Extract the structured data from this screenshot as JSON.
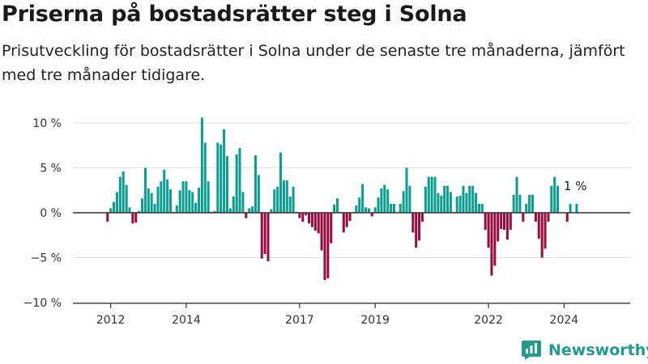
{
  "header": {
    "title": "Priserna på bostadsrätter steg i Solna",
    "subtitle": "Prisutveckling för bostadsrätter i Solna under de senaste tre månaderna, jämfört med tre månader tidigare."
  },
  "brand": {
    "name": "Newsworthy",
    "icon": "newsworthy-logo-icon",
    "color": "#1f9c8c"
  },
  "colors": {
    "positive": "#0d9e91",
    "negative": "#980d3f",
    "grid": "#dddddd",
    "zero": "#333333"
  },
  "chart_data": {
    "type": "bar",
    "title": "Priserna på bostadsrätter steg i Solna",
    "ylim": [
      -10,
      11
    ],
    "yticks": [
      {
        "value": 10,
        "label": "10 %"
      },
      {
        "value": 5,
        "label": "5 %"
      },
      {
        "value": 0,
        "label": "0 %"
      },
      {
        "value": -5,
        "label": "−5 %"
      },
      {
        "value": -10,
        "label": "−10 %"
      }
    ],
    "xlim": [
      2011.0,
      2025.75
    ],
    "xticks": [
      {
        "value": 2012,
        "label": "2012"
      },
      {
        "value": 2014,
        "label": "2014"
      },
      {
        "value": 2017,
        "label": "2017"
      },
      {
        "value": 2019,
        "label": "2019"
      },
      {
        "value": 2022,
        "label": "2022"
      },
      {
        "value": 2024,
        "label": "2024"
      }
    ],
    "start": 2011.917,
    "step": 0.08333,
    "values": [
      -1.0,
      0.5,
      1.2,
      2.3,
      4.0,
      4.6,
      3.1,
      0.6,
      -1.2,
      -1.1,
      0.2,
      1.6,
      5.0,
      2.7,
      2.2,
      1.0,
      2.9,
      3.5,
      4.8,
      3.7,
      2.6,
      0.1,
      0.8,
      2.5,
      3.5,
      3.5,
      2.5,
      2.3,
      1.1,
      2.8,
      10.6,
      7.8,
      3.5,
      0.1,
      0.2,
      7.8,
      7.6,
      9.3,
      6.3,
      0.5,
      1.8,
      6.5,
      7.2,
      2.3,
      -0.6,
      0.5,
      0.7,
      6.4,
      4.2,
      -5.1,
      -4.6,
      -5.4,
      0.4,
      2.6,
      2.9,
      6.7,
      3.6,
      3.6,
      1.8,
      2.9,
      0.1,
      -0.6,
      -1.0,
      -0.3,
      -1.2,
      -1.6,
      -2.0,
      -2.3,
      -4.2,
      -7.5,
      -7.3,
      -3.4,
      0.9,
      1.6,
      0.1,
      -2.2,
      -1.6,
      -0.9,
      0.1,
      0.8,
      1.7,
      3.2,
      0.6,
      0.5,
      -0.4,
      0.6,
      1.7,
      2.7,
      3.1,
      2.6,
      1.0,
      1.0,
      0.0,
      1.0,
      2.4,
      5.0,
      3.0,
      -2.2,
      -3.9,
      -3.1,
      -1.0,
      2.9,
      4.0,
      4.0,
      4.0,
      2.2,
      1.9,
      3.0,
      3.0,
      2.3,
      0.1,
      1.8,
      1.9,
      3.0,
      2.2,
      3.0,
      3.0,
      2.2,
      1.0,
      1.0,
      -1.9,
      -3.9,
      -7.0,
      -5.9,
      -3.2,
      -1.8,
      -1.9,
      -3.0,
      -1.9,
      2.0,
      4.0,
      2.0,
      -1.0,
      1.0,
      2.0,
      2.0,
      -1.0,
      -2.9,
      -5.0,
      -4.0,
      -1.0,
      3.0,
      4.0,
      3.0,
      0.0,
      0.0,
      -1.0,
      1.0,
      0.0,
      1.0
    ],
    "annotations": [
      {
        "index": 149,
        "label": "1 %"
      }
    ]
  }
}
